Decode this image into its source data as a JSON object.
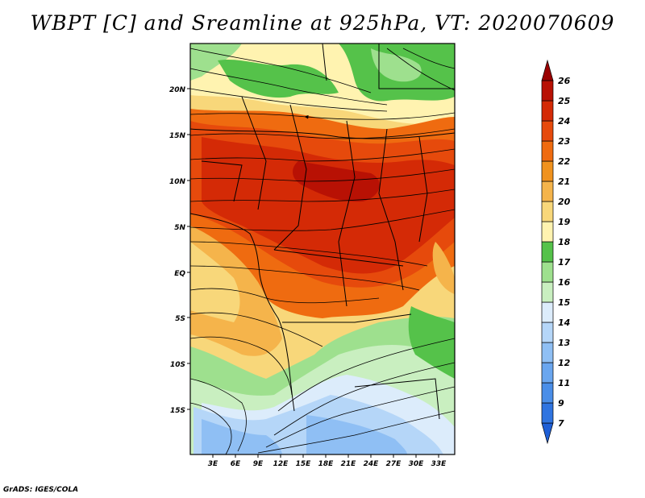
{
  "title": "WBPT [C] and Sreamline at 925hPa, VT: 2020070609",
  "footer": "GrADS: IGES/COLA",
  "map": {
    "lat_labels": [
      "20N",
      "15N",
      "10N",
      "5N",
      "EQ",
      "5S",
      "10S",
      "15S"
    ],
    "lon_labels": [
      "3E",
      "6E",
      "9E",
      "12E",
      "15E",
      "18E",
      "21E",
      "24E",
      "27E",
      "30E",
      "33E"
    ]
  },
  "colorbar": {
    "levels": [
      "7",
      "9",
      "11",
      "12",
      "13",
      "14",
      "15",
      "16",
      "17",
      "18",
      "19",
      "20",
      "21",
      "22",
      "23",
      "24",
      "25",
      "26"
    ],
    "colors": [
      "#1e5fd6",
      "#2f74e0",
      "#4a8ee8",
      "#6aa6ef",
      "#8fbff4",
      "#b5d6f8",
      "#dcecfb",
      "#c9efc0",
      "#9ee08e",
      "#55c24a",
      "#fff3b0",
      "#f8d77a",
      "#f5b44b",
      "#f0921e",
      "#ef6b10",
      "#e64a0c",
      "#d42a06",
      "#b81104",
      "#9a0000"
    ]
  },
  "legend_colors": {
    "border": "#000000"
  }
}
